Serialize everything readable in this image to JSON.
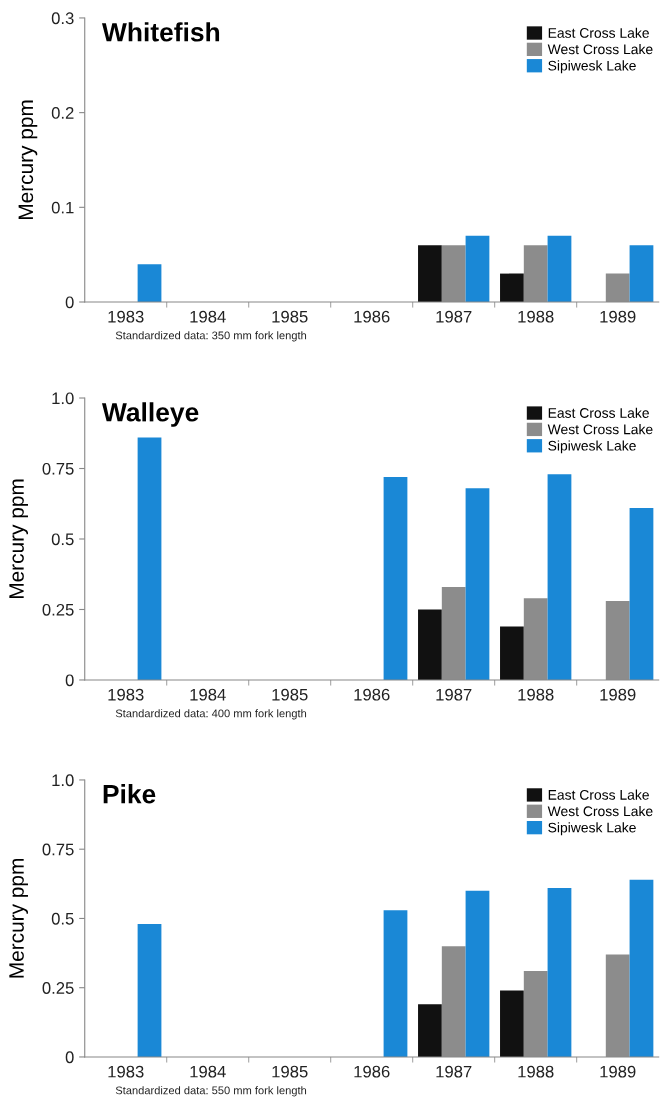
{
  "chart_data": [
    {
      "type": "bar",
      "title": "Whitefish",
      "ylabel": "Mercury ppm",
      "categories": [
        "1983",
        "1984",
        "1985",
        "1986",
        "1987",
        "1988",
        "1989"
      ],
      "series": [
        {
          "name": "East Cross Lake",
          "color": "#111111",
          "values": [
            null,
            null,
            null,
            null,
            0.06,
            0.03,
            null
          ]
        },
        {
          "name": "West Cross Lake",
          "color": "#8c8c8c",
          "values": [
            null,
            null,
            null,
            null,
            0.06,
            0.06,
            0.03
          ]
        },
        {
          "name": "Sipiwesk Lake",
          "color": "#1a88d6",
          "values": [
            0.04,
            null,
            null,
            null,
            0.07,
            0.07,
            0.06
          ]
        }
      ],
      "ylim": [
        0,
        0.3
      ],
      "yticks": [
        0,
        0.1,
        0.2,
        0.3
      ],
      "legend": "top right",
      "grid": false,
      "annotations": [
        "Standardized data: 350 mm fork length"
      ]
    },
    {
      "type": "bar",
      "title": "Walleye",
      "ylabel": "Mercury ppm",
      "categories": [
        "1983",
        "1984",
        "1985",
        "1986",
        "1987",
        "1988",
        "1989"
      ],
      "series": [
        {
          "name": "East Cross Lake",
          "color": "#111111",
          "values": [
            null,
            null,
            null,
            null,
            0.25,
            0.19,
            null
          ]
        },
        {
          "name": "West Cross Lake",
          "color": "#8c8c8c",
          "values": [
            null,
            null,
            null,
            null,
            0.33,
            0.29,
            0.28
          ]
        },
        {
          "name": "Sipiwesk Lake",
          "color": "#1a88d6",
          "values": [
            0.86,
            null,
            null,
            0.72,
            0.68,
            0.73,
            0.61
          ]
        }
      ],
      "ylim": [
        0,
        1.0
      ],
      "yticks": [
        0,
        0.25,
        0.5,
        0.75,
        {
          "value": 1.0,
          "label": "1.0"
        }
      ],
      "legend": "top right",
      "grid": false,
      "annotations": [
        "Standardized data: 400 mm fork length"
      ]
    },
    {
      "type": "bar",
      "title": "Pike",
      "ylabel": "Mercury ppm",
      "categories": [
        "1983",
        "1984",
        "1985",
        "1986",
        "1987",
        "1988",
        "1989"
      ],
      "series": [
        {
          "name": "East Cross Lake",
          "color": "#111111",
          "values": [
            null,
            null,
            null,
            null,
            0.19,
            0.24,
            null
          ]
        },
        {
          "name": "West Cross Lake",
          "color": "#8c8c8c",
          "values": [
            null,
            null,
            null,
            null,
            0.4,
            0.31,
            0.37
          ]
        },
        {
          "name": "Sipiwesk Lake",
          "color": "#1a88d6",
          "values": [
            0.48,
            null,
            null,
            0.53,
            0.6,
            0.61,
            0.64
          ]
        }
      ],
      "ylim": [
        0,
        1.0
      ],
      "yticks": [
        0,
        0.25,
        0.5,
        0.75,
        {
          "value": 1.0,
          "label": "1.0"
        }
      ],
      "legend": "top right",
      "grid": false,
      "annotations": [
        "Standardized data: 550 mm fork length"
      ]
    }
  ]
}
